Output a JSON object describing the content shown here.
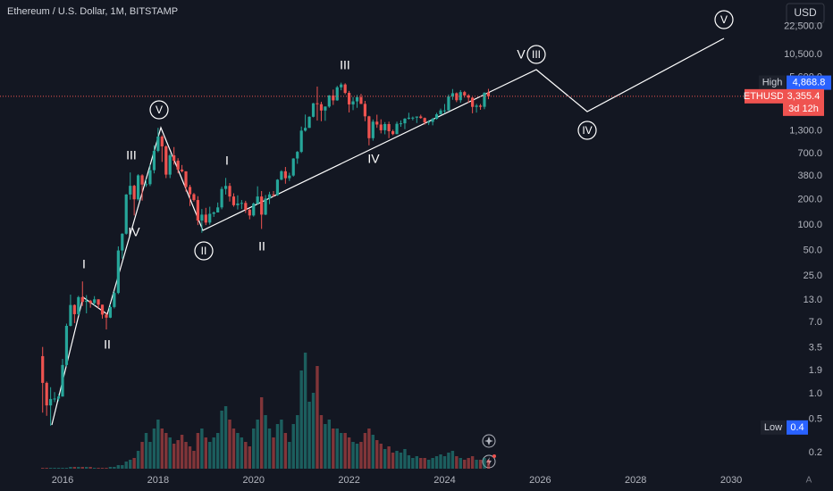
{
  "header": {
    "title": "Ethereum / U.S. Dollar, 1M, BITSTAMP",
    "currency": "USD",
    "auto": "A"
  },
  "chart_data": {
    "type": "candlestick",
    "log_scale": true,
    "grid": false,
    "colors": {
      "up": "#26a69a",
      "down": "#ef5350",
      "line": "#ffffff"
    },
    "xlim": [
      2014.69,
      2030.56
    ],
    "xticks": [
      2016,
      2018,
      2020,
      2022,
      2024,
      2026,
      2028,
      2030
    ],
    "ylim": [
      0.13,
      46400
    ],
    "yticks": [
      {
        "value": 22500,
        "label": "22,500.0"
      },
      {
        "value": 10500,
        "label": "10,500.0"
      },
      {
        "value": 5600,
        "label": "5,600.0"
      },
      {
        "value": 1300,
        "label": "1,300.0"
      },
      {
        "value": 700,
        "label": "700.0"
      },
      {
        "value": 380,
        "label": "380.0"
      },
      {
        "value": 200,
        "label": "200.0"
      },
      {
        "value": 100,
        "label": "100.0"
      },
      {
        "value": 50,
        "label": "50.0"
      },
      {
        "value": 25,
        "label": "25.0"
      },
      {
        "value": 13,
        "label": "13.0"
      },
      {
        "value": 7,
        "label": "7.0"
      },
      3.5,
      1.9,
      {
        "value": 1,
        "label": "1.0"
      },
      0.5,
      0.2
    ],
    "x": [
      2015.583,
      2015.667,
      2015.75,
      2015.833,
      2015.917,
      2016,
      2016.083,
      2016.167,
      2016.25,
      2016.333,
      2016.417,
      2016.5,
      2016.583,
      2016.667,
      2016.75,
      2016.833,
      2016.917,
      2017,
      2017.083,
      2017.167,
      2017.25,
      2017.333,
      2017.417,
      2017.5,
      2017.583,
      2017.667,
      2017.75,
      2017.833,
      2017.917,
      2018,
      2018.083,
      2018.167,
      2018.25,
      2018.333,
      2018.417,
      2018.5,
      2018.583,
      2018.667,
      2018.75,
      2018.833,
      2018.917,
      2019,
      2019.083,
      2019.167,
      2019.25,
      2019.333,
      2019.417,
      2019.5,
      2019.583,
      2019.667,
      2019.75,
      2019.833,
      2019.917,
      2020,
      2020.083,
      2020.167,
      2020.25,
      2020.333,
      2020.417,
      2020.5,
      2020.583,
      2020.667,
      2020.75,
      2020.833,
      2020.917,
      2021,
      2021.083,
      2021.167,
      2021.25,
      2021.333,
      2021.417,
      2021.5,
      2021.583,
      2021.667,
      2021.75,
      2021.833,
      2021.917,
      2022,
      2022.083,
      2022.167,
      2022.25,
      2022.333,
      2022.417,
      2022.5,
      2022.583,
      2022.667,
      2022.75,
      2022.833,
      2022.917,
      2023,
      2023.083,
      2023.167,
      2023.25,
      2023.333,
      2023.417,
      2023.5,
      2023.583,
      2023.667,
      2023.75,
      2023.833,
      2023.917,
      2024,
      2024.083,
      2024.167,
      2024.25,
      2024.333,
      2024.417,
      2024.5,
      2024.583,
      2024.667,
      2024.75,
      2024.833,
      2024.917
    ],
    "candles": [
      [
        2.8,
        3.6,
        0.6,
        1.35
      ],
      [
        1.35,
        1.4,
        0.55,
        0.73
      ],
      [
        0.73,
        1.2,
        0.42,
        0.87
      ],
      [
        0.87,
        1.05,
        0.8,
        0.88
      ],
      [
        0.88,
        1.0,
        0.82,
        0.93
      ],
      [
        0.93,
        2.6,
        0.93,
        2.2
      ],
      [
        2.2,
        6.8,
        2.1,
        6.4
      ],
      [
        6.4,
        15,
        6.3,
        11.3
      ],
      [
        11.3,
        11.5,
        6.9,
        8.8
      ],
      [
        8.8,
        14.5,
        8.5,
        14
      ],
      [
        14,
        21.5,
        11,
        12.3
      ],
      [
        12.3,
        14.8,
        9,
        12.7
      ],
      [
        12.7,
        13,
        10.5,
        11.9
      ],
      [
        11.9,
        14.4,
        11.2,
        13.2
      ],
      [
        13.2,
        13.2,
        10.4,
        11.4
      ],
      [
        11.4,
        11.4,
        7.8,
        8.7
      ],
      [
        8.7,
        9.2,
        5.8,
        8
      ],
      [
        8,
        11.5,
        7.9,
        10.7
      ],
      [
        10.7,
        16.6,
        10.3,
        15.7
      ],
      [
        15.7,
        56,
        15.2,
        50
      ],
      [
        50,
        80,
        40,
        79
      ],
      [
        79,
        233,
        77,
        230
      ],
      [
        230,
        420,
        200,
        292
      ],
      [
        292,
        300,
        130,
        202
      ],
      [
        202,
        400,
        195,
        388
      ],
      [
        388,
        400,
        195,
        302
      ],
      [
        302,
        350,
        283,
        305
      ],
      [
        305,
        520,
        290,
        447
      ],
      [
        447,
        880,
        410,
        756
      ],
      [
        756,
        1420,
        730,
        1118
      ],
      [
        1118,
        1160,
        560,
        856
      ],
      [
        856,
        880,
        360,
        396
      ],
      [
        396,
        705,
        360,
        670
      ],
      [
        670,
        840,
        520,
        578
      ],
      [
        578,
        620,
        410,
        455
      ],
      [
        455,
        515,
        420,
        433
      ],
      [
        433,
        435,
        250,
        283
      ],
      [
        283,
        300,
        168,
        232
      ],
      [
        232,
        240,
        190,
        198
      ],
      [
        198,
        220,
        100,
        113
      ],
      [
        113,
        155,
        81,
        133
      ],
      [
        133,
        160,
        100,
        107
      ],
      [
        107,
        165,
        101,
        136
      ],
      [
        136,
        145,
        125,
        141
      ],
      [
        141,
        185,
        141,
        162
      ],
      [
        162,
        285,
        154,
        268
      ],
      [
        268,
        362,
        230,
        291
      ],
      [
        291,
        315,
        190,
        218
      ],
      [
        218,
        238,
        165,
        172
      ],
      [
        172,
        225,
        153,
        180
      ],
      [
        180,
        198,
        155,
        183
      ],
      [
        183,
        194,
        139,
        152
      ],
      [
        152,
        156,
        117,
        130
      ],
      [
        130,
        185,
        126,
        180
      ],
      [
        180,
        288,
        175,
        218
      ],
      [
        218,
        253,
        90,
        133
      ],
      [
        133,
        227,
        131,
        206
      ],
      [
        206,
        248,
        177,
        231
      ],
      [
        231,
        253,
        216,
        226
      ],
      [
        226,
        350,
        222,
        345
      ],
      [
        345,
        446,
        340,
        434
      ],
      [
        434,
        488,
        309,
        359
      ],
      [
        359,
        417,
        333,
        386
      ],
      [
        386,
        620,
        375,
        615
      ],
      [
        615,
        755,
        532,
        737
      ],
      [
        737,
        1470,
        713,
        1314
      ],
      [
        1314,
        2040,
        1280,
        1418
      ],
      [
        1418,
        1945,
        1410,
        1918
      ],
      [
        1918,
        2797,
        1890,
        2772
      ],
      [
        2772,
        4375,
        1730,
        2707
      ],
      [
        2707,
        2890,
        1700,
        2275
      ],
      [
        2275,
        2550,
        1720,
        2536
      ],
      [
        2536,
        3470,
        2450,
        3433
      ],
      [
        3433,
        4030,
        2650,
        3001
      ],
      [
        3001,
        4460,
        2970,
        4288
      ],
      [
        4288,
        4868.8,
        3950,
        4631
      ],
      [
        4631,
        4780,
        3550,
        3683
      ],
      [
        3683,
        3880,
        2160,
        2688
      ],
      [
        2688,
        3290,
        2300,
        2921
      ],
      [
        2921,
        3480,
        2450,
        3282
      ],
      [
        3282,
        3580,
        2710,
        2727
      ],
      [
        2727,
        2960,
        1700,
        1942
      ],
      [
        1942,
        1970,
        880,
        1070
      ],
      [
        1070,
        1785,
        1000,
        1679
      ],
      [
        1679,
        2030,
        1420,
        1553
      ],
      [
        1553,
        1790,
        1220,
        1328
      ],
      [
        1328,
        1660,
        1190,
        1572
      ],
      [
        1572,
        1680,
        1070,
        1295
      ],
      [
        1295,
        1350,
        1160,
        1196
      ],
      [
        1196,
        1680,
        1190,
        1585
      ],
      [
        1585,
        1740,
        1460,
        1605
      ],
      [
        1605,
        1850,
        1370,
        1822
      ],
      [
        1822,
        2140,
        1780,
        1870
      ],
      [
        1870,
        1930,
        1740,
        1874
      ],
      [
        1874,
        1930,
        1620,
        1934
      ],
      [
        1934,
        2030,
        1820,
        1856
      ],
      [
        1856,
        1880,
        1550,
        1645
      ],
      [
        1645,
        1750,
        1530,
        1671
      ],
      [
        1671,
        1865,
        1520,
        1815
      ],
      [
        1815,
        2140,
        1780,
        2052
      ],
      [
        2052,
        2400,
        2040,
        2282
      ],
      [
        2282,
        2720,
        2100,
        2283
      ],
      [
        2283,
        3520,
        2260,
        3340
      ],
      [
        3340,
        4090,
        3050,
        3648
      ],
      [
        3648,
        3730,
        2860,
        3015
      ],
      [
        3015,
        3970,
        2810,
        3763
      ],
      [
        3763,
        3890,
        3240,
        3438
      ],
      [
        3438,
        3560,
        2810,
        3233
      ],
      [
        3233,
        3290,
        2110,
        2514
      ],
      [
        2514,
        2730,
        2150,
        2603
      ],
      [
        2603,
        2720,
        2320,
        2518
      ],
      [
        2518,
        3740,
        2360,
        3700
      ],
      [
        3700,
        4110,
        3100,
        3355.4
      ]
    ],
    "volume": [
      1,
      1,
      1,
      1,
      1,
      1,
      1,
      2,
      2,
      2,
      2,
      2,
      2,
      1,
      1,
      1,
      1,
      2,
      2,
      4,
      4,
      8,
      10,
      12,
      20,
      30,
      40,
      30,
      45,
      55,
      45,
      40,
      35,
      28,
      32,
      38,
      30,
      25,
      20,
      40,
      45,
      35,
      30,
      35,
      40,
      65,
      70,
      55,
      45,
      40,
      35,
      30,
      25,
      45,
      55,
      80,
      60,
      45,
      35,
      50,
      55,
      40,
      30,
      50,
      60,
      110,
      130,
      75,
      85,
      115,
      60,
      50,
      55,
      45,
      45,
      40,
      40,
      35,
      30,
      28,
      30,
      40,
      45,
      38,
      32,
      28,
      22,
      25,
      18,
      20,
      18,
      22,
      15,
      12,
      14,
      12,
      12,
      10,
      12,
      14,
      16,
      14,
      18,
      20,
      14,
      12,
      10,
      12,
      14,
      10,
      10,
      12,
      10
    ],
    "high": {
      "label": "High",
      "value": 4868.8,
      "value_label": "4,868.8"
    },
    "last": {
      "symbol": "ETHUSD",
      "value": 3355.4,
      "value_label": "3,355.4",
      "countdown": "3d 12h"
    },
    "low": {
      "label": "Low",
      "value": 0.4
    },
    "annotations": [
      {
        "text": "I",
        "circled": false
      },
      {
        "text": "II",
        "circled": false
      },
      {
        "text": "III",
        "circled": false
      },
      {
        "text": "IV",
        "circled": false
      },
      {
        "text": "V",
        "circled": true
      },
      {
        "text": "II",
        "circled": true
      },
      {
        "text": "I",
        "circled": false
      },
      {
        "text": "II",
        "circled": false
      },
      {
        "text": "III",
        "circled": false
      },
      {
        "text": "IV",
        "circled": false
      },
      {
        "text": "V",
        "circled": false
      },
      {
        "text": "III",
        "circled": true
      },
      {
        "text": "IV",
        "circled": true
      },
      {
        "text": "V",
        "circled": true
      }
    ]
  }
}
